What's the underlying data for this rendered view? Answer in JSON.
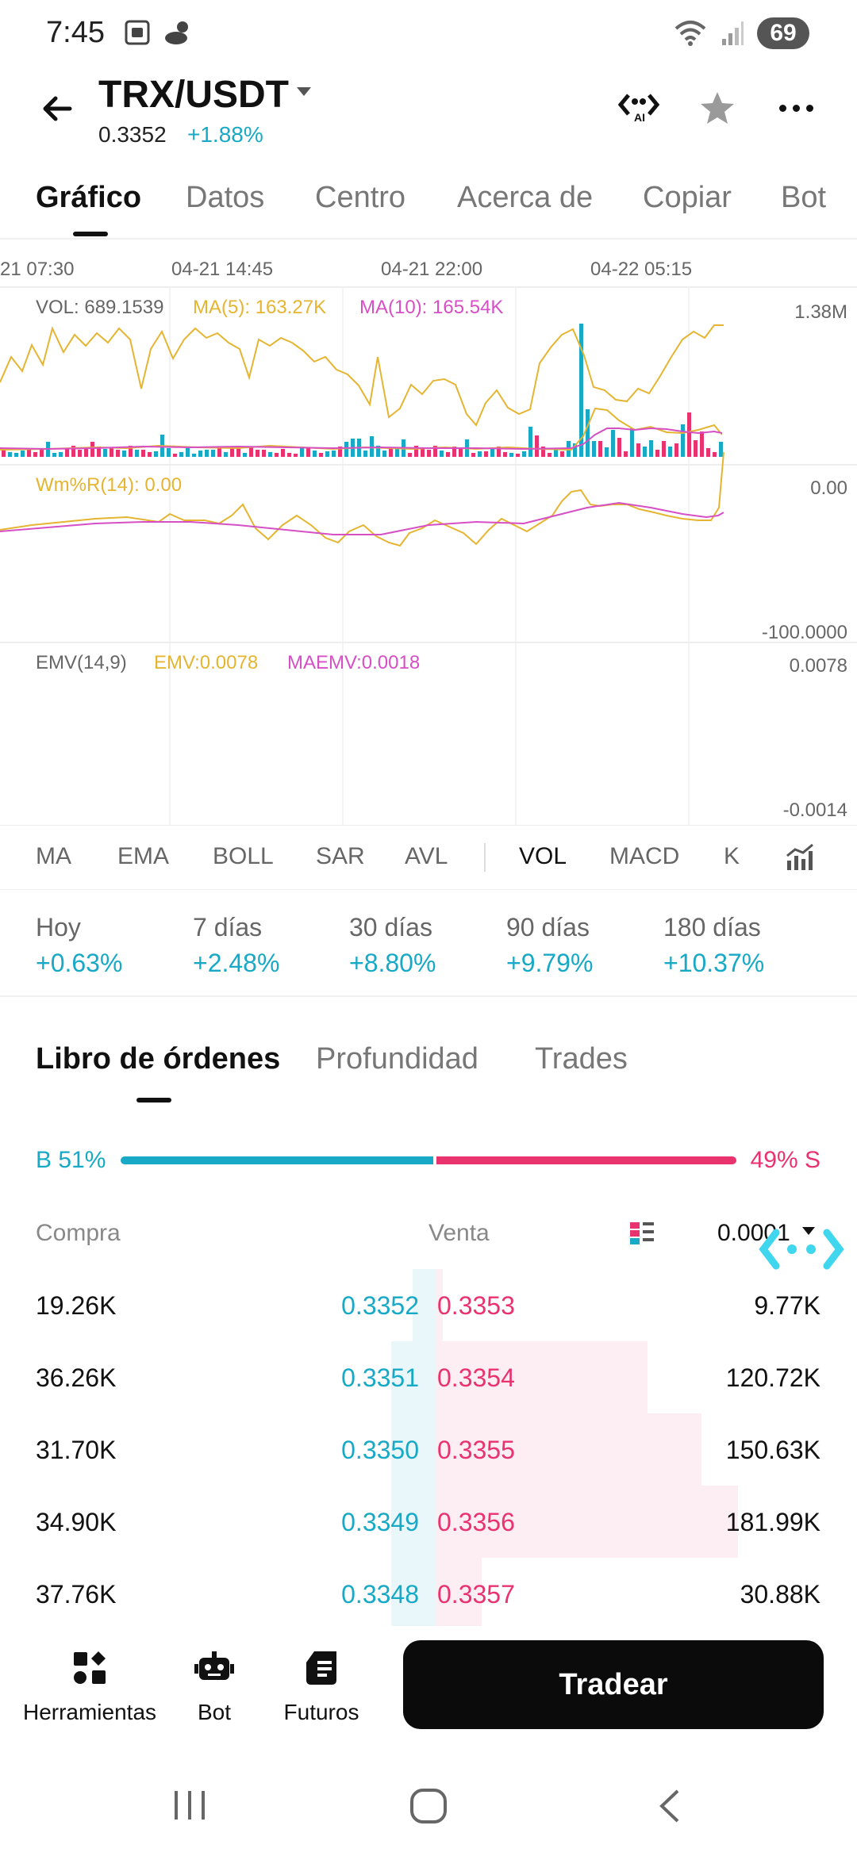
{
  "status_bar": {
    "time": "7:45",
    "battery": "69"
  },
  "header": {
    "pair": "TRX/USDT",
    "price": "0.3352",
    "change": "+1.88%",
    "ai_label": "AI"
  },
  "tabs": [
    "Gráfico",
    "Datos",
    "Centro",
    "Acerca de",
    "Copiar",
    "Bot"
  ],
  "chart": {
    "time_labels": [
      "21 07:30",
      "04-21 14:45",
      "04-21 22:00",
      "04-22 05:15"
    ],
    "volume": {
      "label": "VOL: 689.1539",
      "ma5": "MA(5): 163.27K",
      "ma10": "MA(10): 165.54K",
      "axis_top": "1.38M"
    },
    "wr": {
      "label": "Wm%R(14): 0.00",
      "axis_top": "0.00",
      "axis_bottom": "-100.0000"
    },
    "emv": {
      "label": "EMV(14,9)",
      "emv": "EMV:0.0078",
      "maemv": "MAEMV:0.0018",
      "axis_top": "0.0078",
      "axis_bottom": "-0.0014"
    },
    "colors": {
      "up": "#17a9c6",
      "down": "#e8336f",
      "yellow": "#e5b531",
      "magenta": "#d64fc5"
    }
  },
  "indicators": [
    "MA",
    "EMA",
    "BOLL",
    "SAR",
    "AVL",
    "VOL",
    "MACD",
    "K"
  ],
  "performance": [
    {
      "label": "Hoy",
      "value": "+0.63%"
    },
    {
      "label": "7 días",
      "value": "+2.48%"
    },
    {
      "label": "30 días",
      "value": "+8.80%"
    },
    {
      "label": "90 días",
      "value": "+9.79%"
    },
    {
      "label": "180 días",
      "value": "+10.37%"
    }
  ],
  "orderbook": {
    "tabs": [
      "Libro de órdenes",
      "Profundidad",
      "Trades"
    ],
    "buy_ratio": "B 51%",
    "sell_ratio": "49% S",
    "buy_fraction": 0.51,
    "headers": {
      "buy": "Compra",
      "sell": "Venta",
      "step": "0.0001"
    },
    "rows": [
      {
        "bid_qty": "19.26K",
        "bid": "0.3352",
        "ask": "0.3353",
        "ask_qty": "9.77K",
        "bid_depth": 0.08,
        "ask_depth": 0.02
      },
      {
        "bid_qty": "36.26K",
        "bid": "0.3351",
        "ask": "0.3354",
        "ask_qty": "120.72K",
        "bid_depth": 0.15,
        "ask_depth": 0.7
      },
      {
        "bid_qty": "31.70K",
        "bid": "0.3350",
        "ask": "0.3355",
        "ask_qty": "150.63K",
        "bid_depth": 0.15,
        "ask_depth": 0.88
      },
      {
        "bid_qty": "34.90K",
        "bid": "0.3349",
        "ask": "0.3356",
        "ask_qty": "181.99K",
        "bid_depth": 0.15,
        "ask_depth": 1.0
      },
      {
        "bid_qty": "37.76K",
        "bid": "0.3348",
        "ask": "0.3357",
        "ask_qty": "30.88K",
        "bid_depth": 0.15,
        "ask_depth": 0.15
      }
    ]
  },
  "actions": {
    "tools": "Herramientas",
    "bot": "Bot",
    "futures": "Futuros",
    "trade": "Tradear"
  }
}
